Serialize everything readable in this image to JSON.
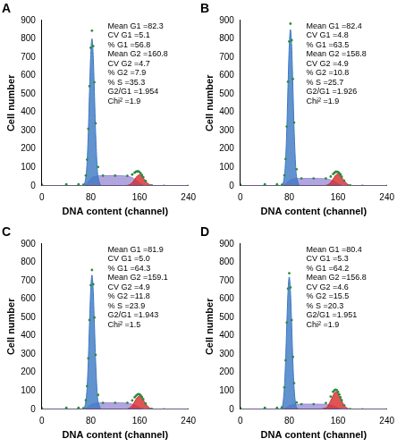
{
  "chart_data": [
    {
      "type": "line",
      "title": "A",
      "x_label": "DNA content (channel)",
      "y_label": "Cell number",
      "xlim": [
        0,
        240
      ],
      "xticks": [
        0,
        80,
        160,
        240
      ],
      "ylim": [
        0,
        900
      ],
      "yticks": [
        0,
        100,
        200,
        300,
        400,
        500,
        600,
        700,
        800,
        900
      ],
      "grid": false,
      "annotations": [
        "Mean G1 =82.3",
        "CV G1 =5.1",
        "% G1 =56.8",
        "Mean G2 =160.8",
        "CV G2 =4.7",
        "% G2 =7.9",
        "% S =35.3",
        "G2/G1 =1.954",
        "Chi² =1.9"
      ],
      "x": [
        0,
        40,
        60,
        68,
        72,
        74,
        76,
        78,
        80,
        82,
        84,
        86,
        88,
        92,
        100,
        120,
        140,
        148,
        152,
        154,
        156,
        158,
        160,
        162,
        164,
        166,
        170,
        180,
        200,
        240
      ],
      "series": [
        {
          "color": "#2e8b3e",
          "marker": "circle",
          "line_style": "none",
          "values": [
            5,
            8,
            8,
            6,
            56,
            142,
            310,
            542,
            751,
            844,
            760,
            563,
            340,
            102,
            55,
            55,
            54,
            61,
            71,
            76,
            78,
            78,
            74,
            67,
            58,
            47,
            26,
            2,
            0,
            0
          ]
        },
        {
          "color": "#3b78c3",
          "line_style": "solid",
          "values": [
            0,
            0,
            0,
            3,
            48,
            128,
            288,
            512,
            712,
            800,
            712,
            512,
            288,
            48,
            0,
            0,
            0,
            0,
            0,
            0,
            0,
            0,
            0,
            0,
            0,
            0,
            0,
            0,
            0,
            0
          ]
        },
        {
          "color": "#d42a2a",
          "line_style": "solid",
          "values": [
            0,
            0,
            0,
            0,
            0,
            0,
            0,
            0,
            0,
            0,
            0,
            0,
            0,
            0,
            0,
            0,
            2,
            17,
            34,
            44,
            52,
            58,
            60,
            58,
            52,
            44,
            25,
            2,
            0,
            0
          ]
        },
        {
          "color": "#9d8fd8",
          "line_style": "solid",
          "values": [
            0,
            0,
            0,
            3,
            8,
            14,
            22,
            30,
            39,
            44,
            48,
            51,
            52,
            54,
            55,
            55,
            52,
            44,
            37,
            32,
            26,
            20,
            14,
            9,
            6,
            3,
            1,
            0,
            0,
            0
          ]
        }
      ]
    },
    {
      "type": "line",
      "title": "B",
      "x_label": "DNA content (channel)",
      "y_label": "Cell number",
      "xlim": [
        0,
        240
      ],
      "xticks": [
        0,
        80,
        160,
        240
      ],
      "ylim": [
        0,
        900
      ],
      "yticks": [
        0,
        100,
        200,
        300,
        400,
        500,
        600,
        700,
        800,
        900
      ],
      "grid": false,
      "annotations": [
        "Mean G1 =82.4",
        "CV G1 =4.8",
        "% G1 =63.5",
        "Mean G2 =158.8",
        "CV G2 =4.9",
        "% G2 =10.8",
        "% S =25.7",
        "G2/G1 =1.926",
        "Chi² =1.9"
      ],
      "x": [
        0,
        40,
        60,
        68,
        72,
        74,
        76,
        78,
        80,
        82,
        84,
        86,
        88,
        92,
        100,
        120,
        140,
        148,
        152,
        154,
        156,
        158,
        160,
        162,
        164,
        166,
        170,
        180,
        200,
        240
      ],
      "series": [
        {
          "color": "#2e8b3e",
          "marker": "circle",
          "line_style": "none",
          "values": [
            5,
            8,
            8,
            5,
            57,
            146,
            322,
            566,
            785,
            882,
            792,
            581,
            344,
            90,
            40,
            40,
            40,
            50,
            64,
            70,
            76,
            76,
            75,
            69,
            61,
            49,
            28,
            2,
            0,
            0
          ]
        },
        {
          "color": "#3b78c3",
          "line_style": "solid",
          "values": [
            0,
            0,
            0,
            3,
            51,
            136,
            306,
            544,
            757,
            850,
            757,
            544,
            306,
            51,
            0,
            0,
            0,
            0,
            0,
            0,
            0,
            0,
            0,
            0,
            0,
            0,
            0,
            0,
            0,
            0
          ]
        },
        {
          "color": "#d42a2a",
          "line_style": "solid",
          "values": [
            0,
            0,
            0,
            0,
            0,
            0,
            0,
            0,
            0,
            0,
            0,
            0,
            0,
            0,
            0,
            0,
            2,
            18,
            37,
            47,
            57,
            62,
            65,
            62,
            57,
            47,
            27,
            2,
            0,
            0
          ]
        },
        {
          "color": "#9d8fd8",
          "line_style": "solid",
          "values": [
            0,
            0,
            0,
            2,
            6,
            10,
            16,
            22,
            28,
            32,
            35,
            37,
            38,
            39,
            40,
            40,
            38,
            32,
            27,
            23,
            19,
            14,
            10,
            7,
            4,
            2,
            1,
            0,
            0,
            0
          ]
        }
      ]
    },
    {
      "type": "line",
      "title": "C",
      "x_label": "DNA content (channel)",
      "y_label": "Cell number",
      "xlim": [
        0,
        240
      ],
      "xticks": [
        0,
        80,
        160,
        240
      ],
      "ylim": [
        0,
        900
      ],
      "yticks": [
        0,
        100,
        200,
        300,
        400,
        500,
        600,
        700,
        800,
        900
      ],
      "grid": false,
      "annotations": [
        "Mean G1 =81.9",
        "CV G1 =5.0",
        "% G1 =64.3",
        "Mean G2 =159.1",
        "CV G2 =4.9",
        "% G2 =11.8",
        "% S =23.9",
        "G2/G1 =1.943",
        "Chi² =1.5"
      ],
      "x": [
        0,
        40,
        60,
        68,
        72,
        74,
        76,
        78,
        80,
        82,
        84,
        86,
        88,
        92,
        100,
        120,
        140,
        148,
        152,
        154,
        156,
        158,
        160,
        162,
        164,
        166,
        170,
        180,
        200,
        240
      ],
      "series": [
        {
          "color": "#2e8b3e",
          "marker": "circle",
          "line_style": "none",
          "values": [
            5,
            8,
            8,
            5,
            49,
            126,
            277,
            486,
            675,
            758,
            680,
            499,
            296,
            78,
            35,
            35,
            35,
            48,
            65,
            73,
            79,
            82,
            81,
            75,
            67,
            55,
            31,
            2,
            0,
            0
          ]
        },
        {
          "color": "#3b78c3",
          "line_style": "solid",
          "values": [
            0,
            0,
            0,
            3,
            44,
            117,
            263,
            467,
            650,
            730,
            650,
            467,
            263,
            44,
            0,
            0,
            0,
            0,
            0,
            0,
            0,
            0,
            0,
            0,
            0,
            0,
            0,
            0,
            0,
            0
          ]
        },
        {
          "color": "#d42a2a",
          "line_style": "solid",
          "values": [
            0,
            0,
            0,
            0,
            0,
            0,
            0,
            0,
            0,
            0,
            0,
            0,
            0,
            0,
            0,
            0,
            2,
            20,
            41,
            53,
            63,
            69,
            72,
            69,
            63,
            53,
            30,
            2,
            0,
            0
          ]
        },
        {
          "color": "#9d8fd8",
          "line_style": "solid",
          "values": [
            0,
            0,
            0,
            2,
            5,
            9,
            14,
            19,
            25,
            28,
            30,
            32,
            33,
            34,
            35,
            35,
            33,
            28,
            24,
            20,
            16,
            13,
            9,
            6,
            4,
            2,
            1,
            0,
            0,
            0
          ]
        }
      ]
    },
    {
      "type": "line",
      "title": "D",
      "x_label": "DNA content (channel)",
      "y_label": "Cell number",
      "xlim": [
        0,
        240
      ],
      "xticks": [
        0,
        80,
        160,
        240
      ],
      "ylim": [
        0,
        900
      ],
      "yticks": [
        0,
        100,
        200,
        300,
        400,
        500,
        600,
        700,
        800,
        900
      ],
      "grid": false,
      "annotations": [
        "Mean G1 =80.4",
        "CV G1 =5.3",
        "% G1 =64.2",
        "Mean G2 =156.8",
        "CV G2 =4.6",
        "% G2 =15.5",
        "% S =20.3",
        "G2/G1 =1.951",
        "Chi² =1.9"
      ],
      "x": [
        0,
        40,
        60,
        68,
        72,
        74,
        76,
        78,
        80,
        82,
        84,
        86,
        88,
        92,
        100,
        120,
        140,
        148,
        152,
        154,
        156,
        158,
        160,
        162,
        164,
        166,
        170,
        180,
        200,
        240
      ],
      "series": [
        {
          "color": "#2e8b3e",
          "marker": "circle",
          "line_style": "none",
          "values": [
            5,
            8,
            8,
            11,
            119,
            266,
            472,
            656,
            740,
            663,
            485,
            285,
            142,
            37,
            28,
            28,
            34,
            69,
            95,
            103,
            107,
            104,
            94,
            81,
            65,
            49,
            22,
            1,
            0,
            0
          ]
        },
        {
          "color": "#3b78c3",
          "line_style": "solid",
          "values": [
            0,
            0,
            0,
            10,
            115,
            259,
            461,
            641,
            720,
            641,
            461,
            259,
            115,
            10,
            0,
            0,
            0,
            0,
            0,
            0,
            0,
            0,
            0,
            0,
            0,
            0,
            0,
            0,
            0,
            0
          ]
        },
        {
          "color": "#d42a2a",
          "line_style": "solid",
          "values": [
            0,
            0,
            0,
            0,
            0,
            0,
            0,
            0,
            0,
            0,
            0,
            0,
            0,
            0,
            0,
            0,
            7,
            47,
            76,
            87,
            94,
            94,
            87,
            76,
            62,
            47,
            21,
            1,
            0,
            0
          ]
        },
        {
          "color": "#9d8fd8",
          "line_style": "solid",
          "values": [
            0,
            0,
            0,
            1,
            4,
            7,
            11,
            15,
            20,
            22,
            24,
            26,
            27,
            27,
            28,
            28,
            27,
            22,
            19,
            16,
            13,
            10,
            7,
            5,
            3,
            2,
            1,
            0,
            0,
            0
          ]
        }
      ]
    }
  ]
}
